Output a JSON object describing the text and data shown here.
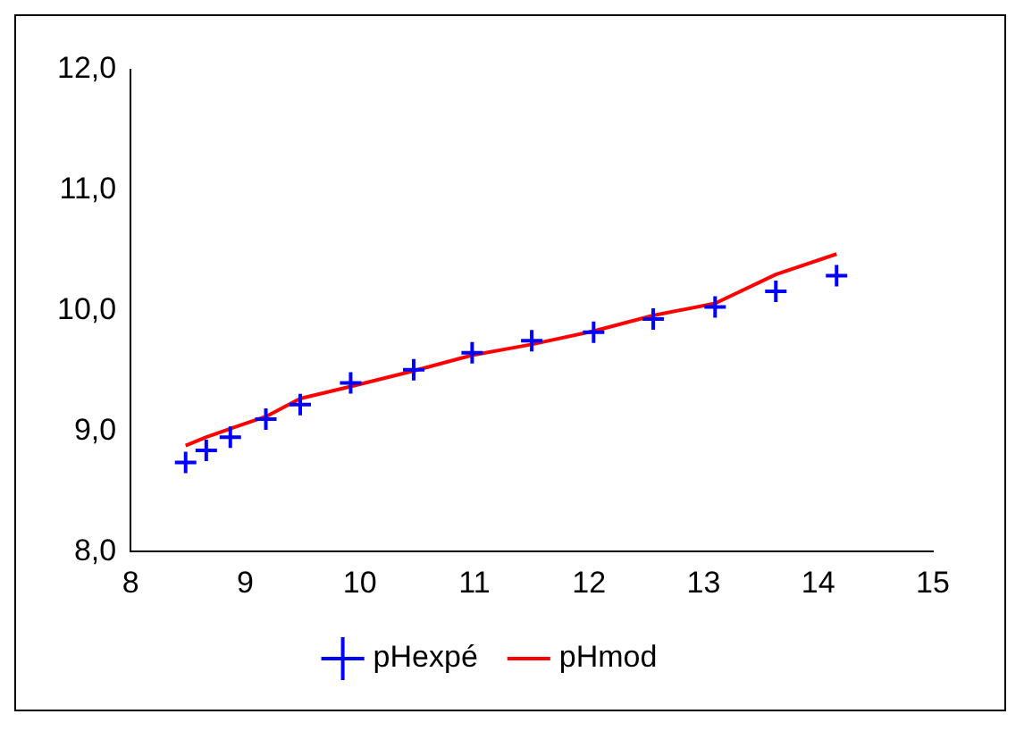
{
  "chart_data": {
    "type": "scatter",
    "xlim": [
      8,
      15
    ],
    "xticks": [
      8,
      9,
      10,
      11,
      12,
      13,
      14,
      15
    ],
    "ylim": [
      8,
      12
    ],
    "yticks": [
      {
        "value": 8,
        "label": "8,0"
      },
      {
        "value": 9,
        "label": "9,0"
      },
      {
        "value": 10,
        "label": "10,0"
      },
      {
        "value": 11,
        "label": "11,0"
      },
      {
        "value": 12,
        "label": "12,0"
      }
    ],
    "grid": false,
    "legend": "bottom",
    "x": [
      8.48,
      8.66,
      8.87,
      9.18,
      9.48,
      9.92,
      10.47,
      10.98,
      11.5,
      12.04,
      12.56,
      13.1,
      13.63,
      14.16
    ],
    "series": [
      {
        "name": "pHexpé",
        "color": "#0000ff",
        "marker": "cross",
        "values": [
          8.74,
          8.84,
          8.95,
          9.1,
          9.22,
          9.4,
          9.51,
          9.65,
          9.75,
          9.82,
          9.93,
          10.03,
          10.16,
          10.29
        ]
      },
      {
        "name": "pHmod",
        "type": "line",
        "color": "#ff0000",
        "marker": "none",
        "values": [
          8.88,
          8.95,
          9.02,
          9.12,
          9.27,
          9.37,
          9.5,
          9.63,
          9.72,
          9.83,
          9.96,
          10.06,
          10.3,
          10.47
        ]
      }
    ]
  }
}
